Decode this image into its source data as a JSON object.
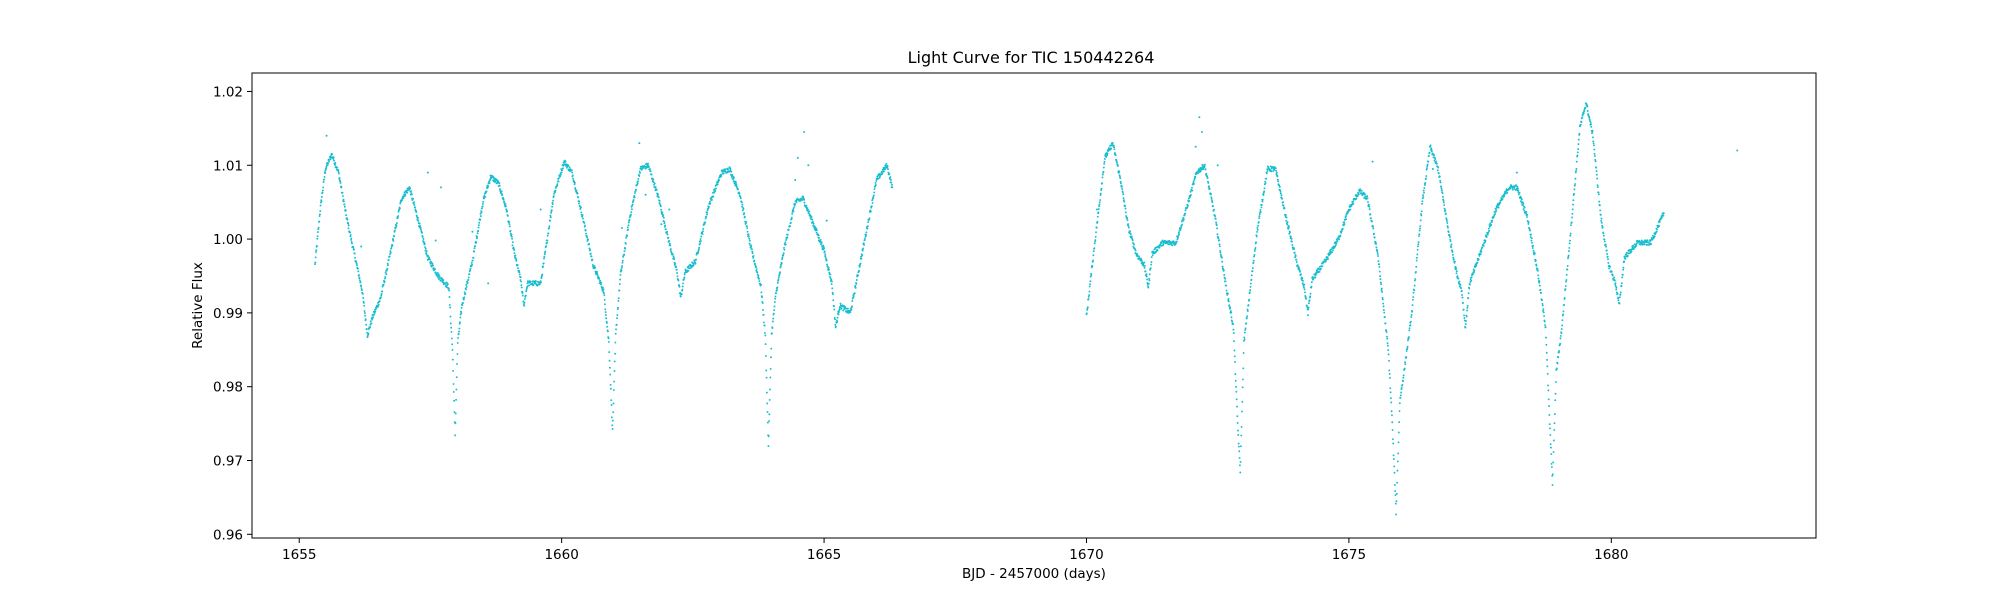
{
  "chart_data": {
    "type": "scatter",
    "title": "Light Curve for TIC 150442264",
    "xlabel": "BJD - 2457000 (days)",
    "ylabel": "Relative Flux",
    "xlim": [
      1654.1,
      1683.9
    ],
    "ylim": [
      0.9595,
      1.0225
    ],
    "xticks": [
      1655,
      1660,
      1665,
      1670,
      1675,
      1680
    ],
    "xtick_labels": [
      "1655",
      "1660",
      "1665",
      "1670",
      "1675",
      "1680"
    ],
    "yticks": [
      0.96,
      0.97,
      0.98,
      0.99,
      1.0,
      1.01,
      1.02
    ],
    "ytick_labels": [
      "0.96",
      "0.97",
      "0.98",
      "0.99",
      "1.00",
      "1.01",
      "1.02"
    ],
    "grid": false,
    "marker_color": "#17becf",
    "series": [
      {
        "segments": [
          {
            "points": [
              [
                1655.3,
                0.9965
              ],
              [
                1655.4,
                1.004
              ],
              [
                1655.5,
                1.0095
              ],
              [
                1655.62,
                1.0115
              ],
              [
                1655.75,
                1.009
              ],
              [
                1655.9,
                1.003
              ],
              [
                1656.05,
                0.998
              ],
              [
                1656.2,
                0.993
              ],
              [
                1656.3,
                0.987
              ],
              [
                1656.4,
                0.9895
              ],
              [
                1656.55,
                0.992
              ],
              [
                1656.75,
                0.9985
              ],
              [
                1656.95,
                1.0055
              ],
              [
                1657.1,
                1.007
              ],
              [
                1657.25,
                1.003
              ],
              [
                1657.45,
                0.9975
              ],
              [
                1657.65,
                0.995
              ],
              [
                1657.85,
                0.9935
              ],
              [
                1657.92,
                0.985
              ],
              [
                1657.97,
                0.9735
              ],
              [
                1658.02,
                0.986
              ],
              [
                1658.1,
                0.991
              ],
              [
                1658.3,
                0.997
              ],
              [
                1658.5,
                1.005
              ],
              [
                1658.65,
                1.0085
              ],
              [
                1658.8,
                1.0075
              ],
              [
                1658.95,
                1.004
              ],
              [
                1659.1,
                0.998
              ],
              [
                1659.22,
                0.9945
              ],
              [
                1659.28,
                0.991
              ],
              [
                1659.35,
                0.994
              ],
              [
                1659.6,
                0.994
              ],
              [
                1659.85,
                1.006
              ],
              [
                1660.05,
                1.0105
              ],
              [
                1660.2,
                1.009
              ],
              [
                1660.4,
                1.003
              ],
              [
                1660.6,
                0.9965
              ],
              [
                1660.8,
                0.993
              ],
              [
                1660.9,
                0.986
              ],
              [
                1660.97,
                0.974
              ],
              [
                1661.03,
                0.987
              ],
              [
                1661.12,
                0.995
              ],
              [
                1661.3,
                1.003
              ],
              [
                1661.5,
                1.0095
              ],
              [
                1661.65,
                1.01
              ],
              [
                1661.85,
                1.0055
              ],
              [
                1662.05,
                0.9995
              ],
              [
                1662.2,
                0.9955
              ],
              [
                1662.27,
                0.992
              ],
              [
                1662.35,
                0.9955
              ],
              [
                1662.55,
                0.997
              ],
              [
                1662.8,
                1.0045
              ],
              [
                1663.05,
                1.009
              ],
              [
                1663.2,
                1.0095
              ],
              [
                1663.4,
                1.006
              ],
              [
                1663.6,
                0.999
              ],
              [
                1663.8,
                0.9935
              ],
              [
                1663.88,
                0.987
              ],
              [
                1663.94,
                0.972
              ],
              [
                1664.0,
                0.987
              ],
              [
                1664.08,
                0.9925
              ],
              [
                1664.25,
                0.999
              ],
              [
                1664.45,
                1.005
              ],
              [
                1664.6,
                1.0055
              ],
              [
                1664.8,
                1.002
              ],
              [
                1665.0,
                0.9985
              ],
              [
                1665.15,
                0.994
              ],
              [
                1665.22,
                0.988
              ],
              [
                1665.3,
                0.991
              ],
              [
                1665.5,
                0.99
              ],
              [
                1665.75,
                0.999
              ],
              [
                1666.0,
                1.008
              ],
              [
                1666.2,
                1.01
              ],
              [
                1666.3,
                1.007
              ]
            ]
          },
          {
            "points": [
              [
                1670.0,
                0.9895
              ],
              [
                1670.15,
                0.999
              ],
              [
                1670.35,
                1.011
              ],
              [
                1670.5,
                1.013
              ],
              [
                1670.65,
                1.008
              ],
              [
                1670.8,
                1.0015
              ],
              [
                1670.95,
                0.998
              ],
              [
                1671.1,
                0.9965
              ],
              [
                1671.18,
                0.9935
              ],
              [
                1671.25,
                0.998
              ],
              [
                1671.45,
                0.9995
              ],
              [
                1671.7,
                0.9995
              ],
              [
                1671.9,
                1.004
              ],
              [
                1672.1,
                1.009
              ],
              [
                1672.25,
                1.01
              ],
              [
                1672.45,
                1.003
              ],
              [
                1672.65,
                0.994
              ],
              [
                1672.8,
                0.988
              ],
              [
                1672.88,
                0.975
              ],
              [
                1672.93,
                0.9685
              ],
              [
                1673.0,
                0.986
              ],
              [
                1673.1,
                0.992
              ],
              [
                1673.25,
                1.001
              ],
              [
                1673.45,
                1.0095
              ],
              [
                1673.6,
                1.0095
              ],
              [
                1673.8,
                1.003
              ],
              [
                1674.0,
                0.997
              ],
              [
                1674.15,
                0.9935
              ],
              [
                1674.22,
                0.99
              ],
              [
                1674.3,
                0.9945
              ],
              [
                1674.55,
                0.997
              ],
              [
                1674.8,
                1.0
              ],
              [
                1675.0,
                1.004
              ],
              [
                1675.2,
                1.0065
              ],
              [
                1675.35,
                1.0055
              ],
              [
                1675.55,
                0.998
              ],
              [
                1675.75,
                0.985
              ],
              [
                1675.82,
                0.976
              ],
              [
                1675.9,
                0.963
              ],
              [
                1675.97,
                0.978
              ],
              [
                1676.05,
                0.982
              ],
              [
                1676.2,
                0.99
              ],
              [
                1676.4,
                1.005
              ],
              [
                1676.55,
                1.0125
              ],
              [
                1676.7,
                1.0095
              ],
              [
                1676.9,
                1.001
              ],
              [
                1677.05,
                0.9955
              ],
              [
                1677.15,
                0.993
              ],
              [
                1677.22,
                0.988
              ],
              [
                1677.3,
                0.994
              ],
              [
                1677.55,
                0.999
              ],
              [
                1677.8,
                1.004
              ],
              [
                1678.05,
                1.007
              ],
              [
                1678.2,
                1.007
              ],
              [
                1678.4,
                1.003
              ],
              [
                1678.6,
                0.9955
              ],
              [
                1678.75,
                0.988
              ],
              [
                1678.82,
                0.976
              ],
              [
                1678.88,
                0.967
              ],
              [
                1678.95,
                0.982
              ],
              [
                1679.05,
                0.9875
              ],
              [
                1679.2,
                0.999
              ],
              [
                1679.4,
                1.015
              ],
              [
                1679.52,
                1.0185
              ],
              [
                1679.65,
                1.014
              ],
              [
                1679.8,
                1.003
              ],
              [
                1679.95,
                0.9965
              ],
              [
                1680.08,
                0.994
              ],
              [
                1680.15,
                0.991
              ],
              [
                1680.25,
                0.9975
              ],
              [
                1680.5,
                0.9995
              ],
              [
                1680.75,
                0.9995
              ],
              [
                1681.0,
                1.0035
              ]
            ]
          }
        ],
        "outliers": [
          [
            1655.52,
            1.014
          ],
          [
            1656.18,
            0.999
          ],
          [
            1657.45,
            1.009
          ],
          [
            1657.6,
            0.9998
          ],
          [
            1657.7,
            1.007
          ],
          [
            1658.3,
            1.001
          ],
          [
            1658.6,
            0.994
          ],
          [
            1659.6,
            1.004
          ],
          [
            1661.15,
            1.0015
          ],
          [
            1661.48,
            1.013
          ],
          [
            1661.6,
            1.006
          ],
          [
            1661.9,
            1.002
          ],
          [
            1662.05,
            1.004
          ],
          [
            1664.45,
            1.008
          ],
          [
            1664.5,
            1.011
          ],
          [
            1664.62,
            1.0145
          ],
          [
            1664.7,
            1.01
          ],
          [
            1664.9,
            0.9998
          ],
          [
            1665.05,
            1.0025
          ],
          [
            1670.2,
            1.004
          ],
          [
            1672.08,
            1.0125
          ],
          [
            1672.15,
            1.0165
          ],
          [
            1672.2,
            1.0145
          ],
          [
            1672.5,
            1.01
          ],
          [
            1675.45,
            1.0105
          ],
          [
            1676.6,
            1.0095
          ],
          [
            1678.2,
            1.009
          ],
          [
            1682.4,
            1.012
          ]
        ]
      }
    ]
  }
}
